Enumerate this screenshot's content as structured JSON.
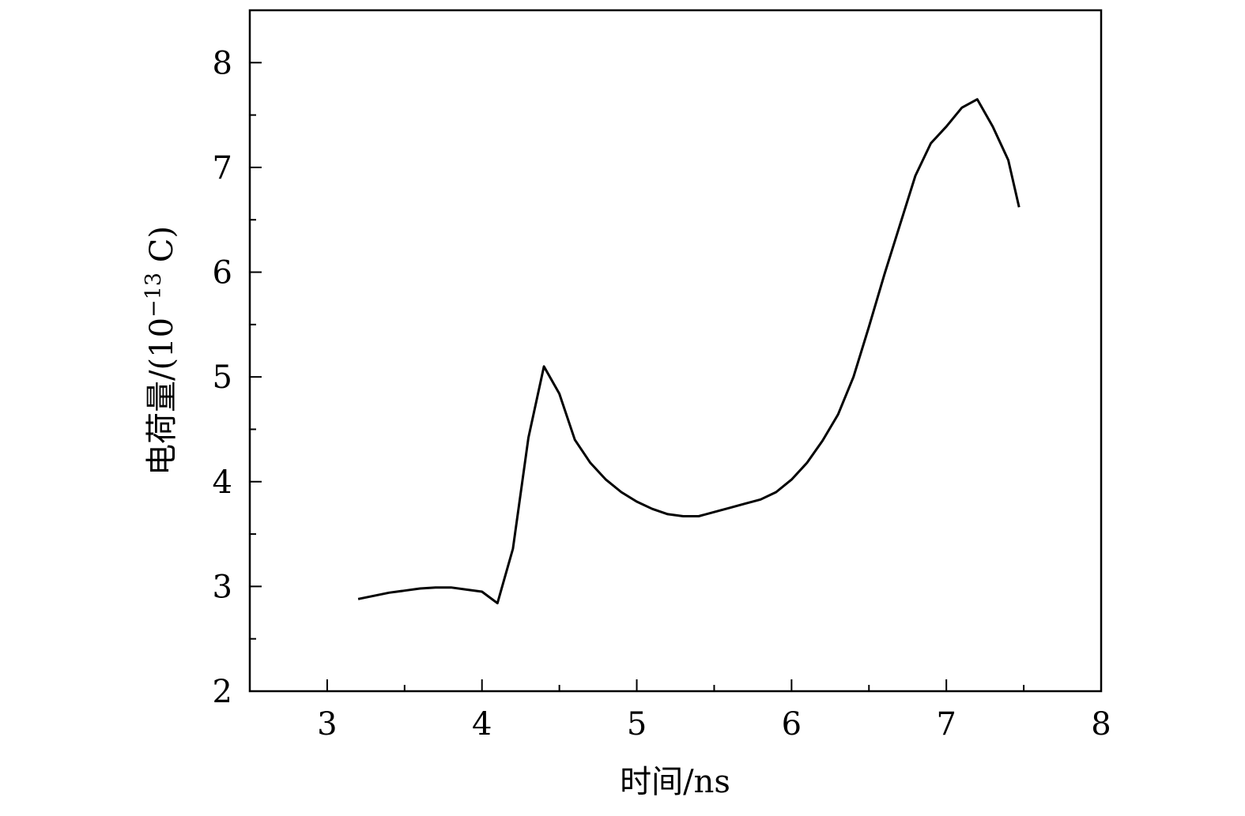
{
  "chart_data": {
    "type": "line",
    "title": "",
    "xlabel": "时间/ns",
    "ylabel": "电荷量/(10",
    "ylabel_exponent": "−13",
    "ylabel_unit": " C)",
    "xlim": [
      2.5,
      8
    ],
    "ylim": [
      2,
      8.5
    ],
    "xticks": [
      3,
      4,
      5,
      6,
      7,
      8
    ],
    "yticks": [
      2,
      3,
      4,
      5,
      6,
      7,
      8
    ],
    "x_minor_step": 0.5,
    "y_minor_step": 0.5,
    "grid": false,
    "legend": "none",
    "line_color": "#000000",
    "series": [
      {
        "x": [
          3.2,
          3.3,
          3.4,
          3.5,
          3.6,
          3.7,
          3.8,
          3.9,
          4.0,
          4.1,
          4.2,
          4.3,
          4.4,
          4.5,
          4.6,
          4.7,
          4.8,
          4.9,
          5.0,
          5.1,
          5.2,
          5.3,
          5.4,
          5.5,
          5.6,
          5.7,
          5.8,
          5.9,
          6.0,
          6.1,
          6.2,
          6.3,
          6.4,
          6.5,
          6.6,
          6.7,
          6.8,
          6.9,
          7.0,
          7.1,
          7.2,
          7.3,
          7.4,
          7.47
        ],
        "y": [
          2.88,
          2.91,
          2.94,
          2.96,
          2.98,
          2.99,
          2.99,
          2.97,
          2.95,
          2.84,
          3.36,
          4.42,
          5.1,
          4.84,
          4.4,
          4.18,
          4.02,
          3.9,
          3.81,
          3.74,
          3.69,
          3.67,
          3.67,
          3.71,
          3.75,
          3.79,
          3.83,
          3.9,
          4.02,
          4.18,
          4.39,
          4.64,
          5.0,
          5.48,
          5.98,
          6.45,
          6.92,
          7.23,
          7.39,
          7.57,
          7.65,
          7.39,
          7.07,
          6.62
        ]
      }
    ]
  }
}
